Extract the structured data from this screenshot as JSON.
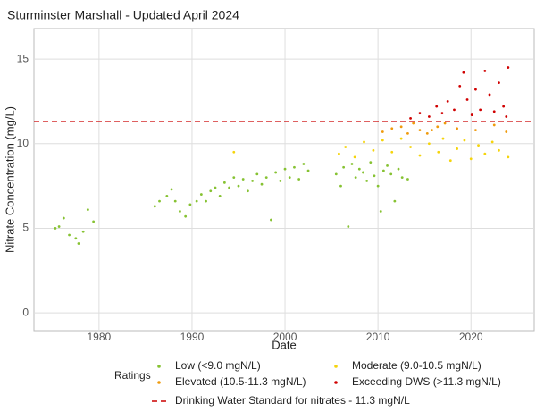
{
  "chart_data": {
    "type": "scatter",
    "title": "Sturminster Marshall - Updated April 2024",
    "x_label": "Date",
    "y_label": "Nitrate Concentration (mg/L)",
    "xlim": [
      1973,
      2026.8
    ],
    "xticks": [
      1980,
      1990,
      2000,
      2010,
      2020
    ],
    "ylim": [
      -1.05,
      16.8
    ],
    "yticks": [
      0,
      5,
      10,
      15
    ],
    "grid": true,
    "legend_title": "Ratings",
    "legend_position": "bottom",
    "series": [
      {
        "name": "Low (<9.0 mgN/L)",
        "color": "#86c232",
        "x": [
          1975.3,
          1975.7,
          1976.2,
          1976.8,
          1977.5,
          1977.8,
          1978.3,
          1978.8,
          1979.4,
          1986,
          1986.5,
          1987.3,
          1987.8,
          1988.2,
          1988.7,
          1989.3,
          1989.8,
          1990.5,
          1991,
          1991.5,
          1992,
          1992.5,
          1993,
          1993.5,
          1994,
          1994.5,
          1995,
          1995.5,
          1996,
          1996.5,
          1997,
          1997.5,
          1998,
          1998.5,
          1999,
          1999.5,
          2000,
          2000.5,
          2001,
          2001.5,
          2002,
          2002.5,
          2005.5,
          2006,
          2006.3,
          2006.8,
          2007.2,
          2007.6,
          2008,
          2008.4,
          2008.8,
          2009.2,
          2009.6,
          2010,
          2010.3,
          2010.6,
          2011,
          2011.4,
          2011.8,
          2012.2,
          2012.6,
          2013.2
        ],
        "values": [
          5.0,
          5.1,
          5.6,
          4.6,
          4.4,
          4.1,
          4.8,
          6.1,
          5.4,
          6.3,
          6.6,
          6.9,
          7.3,
          6.6,
          6.0,
          5.7,
          6.4,
          6.6,
          7.0,
          6.6,
          7.2,
          7.4,
          6.9,
          7.7,
          7.4,
          8.0,
          7.5,
          7.9,
          7.2,
          7.8,
          8.2,
          7.6,
          8.0,
          5.5,
          8.3,
          7.8,
          8.5,
          8.0,
          8.6,
          7.9,
          8.8,
          8.4,
          8.2,
          7.5,
          8.6,
          5.1,
          8.8,
          8.0,
          8.5,
          8.3,
          7.8,
          8.9,
          8.1,
          7.5,
          6.0,
          8.4,
          8.7,
          8.2,
          6.6,
          8.5,
          8.0,
          7.9
        ]
      },
      {
        "name": "Moderate (9.0-10.5 mgN/L)",
        "color": "#f5d40c",
        "x": [
          1994.5,
          2005.8,
          2006.5,
          2007.5,
          2008.5,
          2009.5,
          2010.5,
          2011.5,
          2012.5,
          2013.5,
          2014.5,
          2015.5,
          2016.5,
          2017,
          2017.8,
          2018.5,
          2019.3,
          2020,
          2020.8,
          2021.5,
          2022.3,
          2023,
          2024
        ],
        "values": [
          9.5,
          9.4,
          9.8,
          9.2,
          10.1,
          9.6,
          10.2,
          9.5,
          10.3,
          9.8,
          9.3,
          10.0,
          9.5,
          10.3,
          9.0,
          9.7,
          10.2,
          9.1,
          9.9,
          9.4,
          10.1,
          9.6,
          9.2
        ]
      },
      {
        "name": "Elevated (10.5-11.3 mgN/L)",
        "color": "#ef9a0c",
        "x": [
          2010.5,
          2011.5,
          2012.5,
          2013.2,
          2013.8,
          2014.5,
          2015.3,
          2015.8,
          2016.4,
          2017.2,
          2018.5,
          2020.5,
          2022.5,
          2023.8
        ],
        "values": [
          10.7,
          10.9,
          11.0,
          10.6,
          11.2,
          10.8,
          10.6,
          10.8,
          11.0,
          11.2,
          10.9,
          10.8,
          11.1,
          10.7
        ]
      },
      {
        "name": "Exceeding DWS (>11.3 mgN/L)",
        "color": "#d00000",
        "x": [
          2013.5,
          2014.5,
          2015.5,
          2016.3,
          2016.9,
          2017.5,
          2018.2,
          2018.8,
          2019.2,
          2019.6,
          2020.1,
          2020.5,
          2021,
          2021.5,
          2022,
          2022.5,
          2023,
          2023.5,
          2024,
          2023.8
        ],
        "values": [
          11.5,
          11.8,
          11.6,
          12.2,
          11.8,
          12.5,
          12.0,
          13.4,
          14.2,
          12.6,
          11.7,
          13.2,
          12.0,
          14.3,
          12.9,
          11.9,
          13.6,
          12.2,
          14.5,
          11.6
        ]
      }
    ],
    "hline": {
      "value": 11.3,
      "color": "#cc0000",
      "label": "Drinking Water Standard for nitrates - 11.3 mgN/L"
    }
  }
}
